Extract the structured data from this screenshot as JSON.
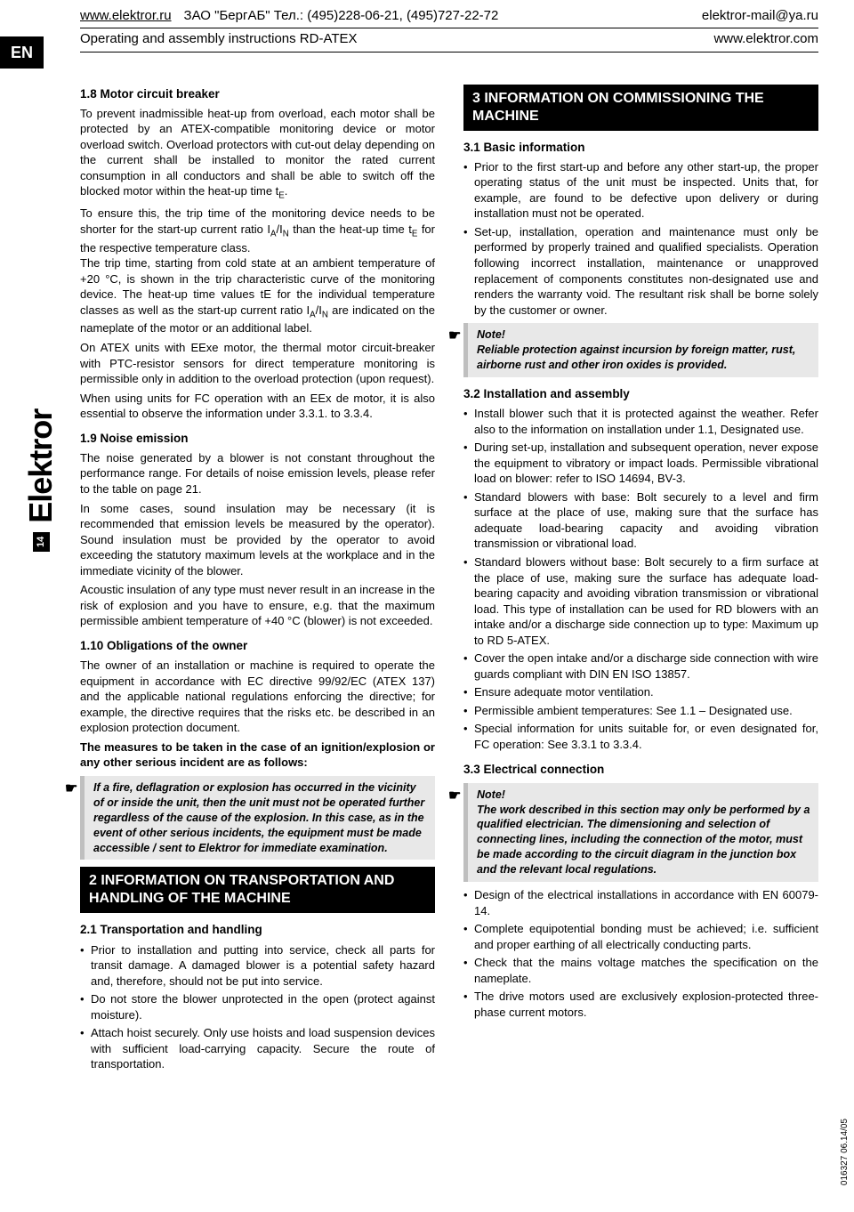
{
  "header": {
    "site_ru": "www.elektror.ru",
    "dealer": "ЗАО \"БергАБ\"   Тел.: (495)228-06-21, (495)727-22-72",
    "email": "elektror-mail@ya.ru",
    "doc_title": "Operating and assembly instructions RD-ATEX",
    "site_com": "www.elektror.com"
  },
  "side": {
    "lang": "EN",
    "page_number": "14",
    "brand": "Elektror"
  },
  "doc_code": "016327 06.14/05",
  "left": {
    "s18_head": "1.8 Motor circuit breaker",
    "s18_p1": "To prevent inadmissible heat-up from overload, each motor shall be protected by an ATEX-compatible monitoring device or motor overload switch. Overload protectors with cut-out delay depending on the current shall be installed to monitor the rated current consumption in all conductors and shall be able to switch off the blocked motor within the heat-up time tE.",
    "s18_p2": "To ensure this, the trip time of the monitoring device needs to be shorter for the start-up current ratio IA/IN than the heat-up time tE for the respective temperature class.",
    "s18_p3": "The trip time, starting from cold state at an ambient temperature of +20 °C, is shown in the trip characteristic curve of the monitoring device. The heat-up time values tE for the individual temperature classes as well as the start-up current ratio IA/IN are indicated on the nameplate of the motor or an additional label.",
    "s18_p4": "On ATEX units with EExe motor, the thermal motor circuit-breaker with PTC-resistor sensors for direct temperature monitoring is permissible only in addition to the overload protection (upon request).",
    "s18_p5": "When using units for FC operation with an EEx de motor, it is also essential to observe the information under 3.3.1. to 3.3.4.",
    "s19_head": "1.9 Noise emission",
    "s19_p1": "The noise generated by a blower is not constant throughout the performance range. For details of noise emission levels, please refer to the table on page 21.",
    "s19_p2": "In some cases, sound insulation may be necessary (it is recommended that emission levels be measured by the operator). Sound insulation must be provided by the operator to avoid exceeding the statutory maximum levels at the workplace and in the immediate vicinity of the blower.",
    "s19_p3": "Acoustic insulation of any type must never result in an increase in the risk of explosion and you have to ensure, e.g. that the maximum permissible ambient temperature of +40 °C (blower) is not exceeded.",
    "s110_head": "1.10 Obligations of the owner",
    "s110_p1": "The owner of an installation or machine is required to operate the equipment in accordance with EC directive 99/92/EC (ATEX 137) and the applicable national regulations enforcing the directive; for example, the directive requires that the risks etc. be described in an explosion protection document.",
    "s110_p2_bold": "The measures to be taken in the case of an ignition/explosion or any other serious incident are as follows:",
    "s110_note": "If a fire, deflagration or explosion has occurred in the vicinity of or inside the unit, then the unit must not be operated further regardless of the cause of the explosion. In this case, as in the event of other serious incidents, the equipment must be made accessible / sent to Elektror for immediate examination.",
    "sec2_head": "2  INFORMATION ON TRANSPORTATION AND HANDLING OF THE MACHINE",
    "s21_head": "2.1 Transportation and handling",
    "s21_li1": "Prior to installation and putting into service, check all parts for transit damage. A damaged blower is a potential safety hazard and, therefore, should not be put into service.",
    "s21_li2": "Do not store the blower unprotected in the open (protect against moisture).",
    "s21_li3": "Attach hoist securely. Only use hoists and load suspension devices with sufficient load-carrying capacity. Secure the route of transportation."
  },
  "right": {
    "sec3_head": "3 INFORMATION ON COMMISSIONING THE MACHINE",
    "s31_head": "3.1 Basic information",
    "s31_li1": "Prior to the first start-up and before any other start-up, the proper operating status of the unit must be inspected. Units that, for example, are found to be defective upon delivery or during installation must not be operated.",
    "s31_li2": "Set-up, installation, operation and maintenance must only be performed by properly trained and qualified specialists. Operation following incorrect installation, maintenance or unapproved replacement of components constitutes non-designated use and renders the warranty void. The resultant risk shall be borne solely by the customer or owner.",
    "s31_note_title": "Note!",
    "s31_note": "Reliable protection against incursion by foreign matter, rust, airborne rust and other iron oxides is provided.",
    "s32_head": "3.2 Installation and assembly",
    "s32_li1": "Install blower such that it is protected against the weather. Refer also to the information on installation under 1.1, Designated use.",
    "s32_li2": "During set-up, installation and subsequent operation, never expose the equipment to vibratory or impact loads. Permissible vibrational load on blower: refer to ISO 14694, BV-3.",
    "s32_li3": "Standard blowers with base:\nBolt securely to a level and firm surface at the place of use, making sure that the surface has adequate load-bearing capacity and avoiding vibration transmission or vibrational load.",
    "s32_li4": "Standard blowers without base:\nBolt securely to a firm surface at the place of use, making sure the surface has adequate load-bearing capacity and avoiding vibration transmission or vibrational load. This type of installation can be used for RD blowers with an intake and/or a discharge side connection up to type: Maximum up to  RD 5-ATEX.",
    "s32_li5": "Cover the open intake and/or a discharge side connection with wire guards compliant with DIN EN ISO 13857.",
    "s32_li6": "Ensure adequate motor ventilation.",
    "s32_li7": "Permissible ambient temperatures:\nSee 1.1 – Designated use.",
    "s32_li8": "Special information for units suitable for, or even designated for, FC operation: See 3.3.1 to 3.3.4.",
    "s33_head": "3.3 Electrical connection",
    "s33_note_title": "Note!",
    "s33_note": "The work described in this section may only be performed by a qualified electrician. The dimensioning and selection of connecting lines, including the connection of the motor, must be made according to the circuit diagram in the junction box and the relevant local regulations.",
    "s33_li1": "Design of the electrical installations in accordance with EN 60079-14.",
    "s33_li2": "Complete equipotential bonding must be achieved; i.e. sufficient and proper earthing of all electrically conducting parts.",
    "s33_li3": "Check that the mains voltage matches the specification on the nameplate.",
    "s33_li4": "The drive motors used are exclusively explosion-protected three-phase current motors."
  }
}
